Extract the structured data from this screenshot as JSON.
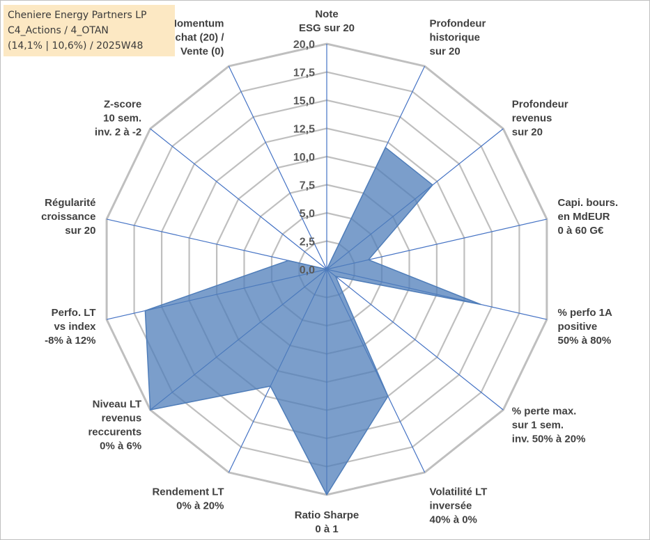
{
  "title_box": {
    "line1": "Cheniere Energy Partners LP",
    "line2": "C4_Actions / 4_OTAN",
    "line3": "(14,1% | 10,6%) / 2025W48"
  },
  "chart_data": {
    "type": "radar",
    "title": "",
    "rmin": 0,
    "rmax": 20,
    "tick_step": 2.5,
    "tick_labels": [
      "0,0",
      "2,5",
      "5,0",
      "7,5",
      "10,0",
      "12,5",
      "15,0",
      "17,5",
      "20,0"
    ],
    "axes": [
      {
        "label": [
          "Note",
          "ESG sur 20"
        ],
        "value": 0.0
      },
      {
        "label": [
          "Profondeur",
          "historique",
          "sur 20"
        ],
        "value": 12.0
      },
      {
        "label": [
          "Profondeur",
          "revenus",
          "sur 20"
        ],
        "value": 12.0
      },
      {
        "label": [
          "Capi. bours.",
          "en MdEUR",
          "0 à 60 G€"
        ],
        "value": 3.8
      },
      {
        "label": [
          "% perfo 1A",
          "positive",
          "50% à 80%"
        ],
        "value": 14.0
      },
      {
        "label": [
          "% perte max.",
          "sur 1 sem.",
          "inv. 50% à 20%"
        ],
        "value": 1.0
      },
      {
        "label": [
          "Volatilité LT",
          "inversée",
          "40% à 0%"
        ],
        "value": 12.5
      },
      {
        "label": [
          "Ratio Sharpe",
          "0 à 1"
        ],
        "value": 20.0
      },
      {
        "label": [
          "Rendement LT",
          "0% à 20%"
        ],
        "value": 11.5
      },
      {
        "label": [
          "Niveau LT",
          "revenus",
          "reccurents",
          "0% à 6%"
        ],
        "value": 20.0
      },
      {
        "label": [
          "Perfo. LT",
          "vs index",
          "-8% à 12%"
        ],
        "value": 16.5
      },
      {
        "label": [
          "Régularité",
          "croissance",
          "sur 20"
        ],
        "value": 3.5
      },
      {
        "label": [
          "Z-score",
          "10 sem.",
          "inv. 2 à -2"
        ],
        "value": 0.0
      },
      {
        "label": [
          "Momentum",
          "Achat (20) /",
          "Vente (0)"
        ],
        "value": 0.0
      }
    ],
    "series": [
      {
        "name": "Cheniere Energy Partners LP",
        "color": "#4f7db9",
        "fill": "#4f7db9"
      }
    ],
    "grid_color": "#bfbfbf",
    "spoke_color": "#4472c4"
  }
}
